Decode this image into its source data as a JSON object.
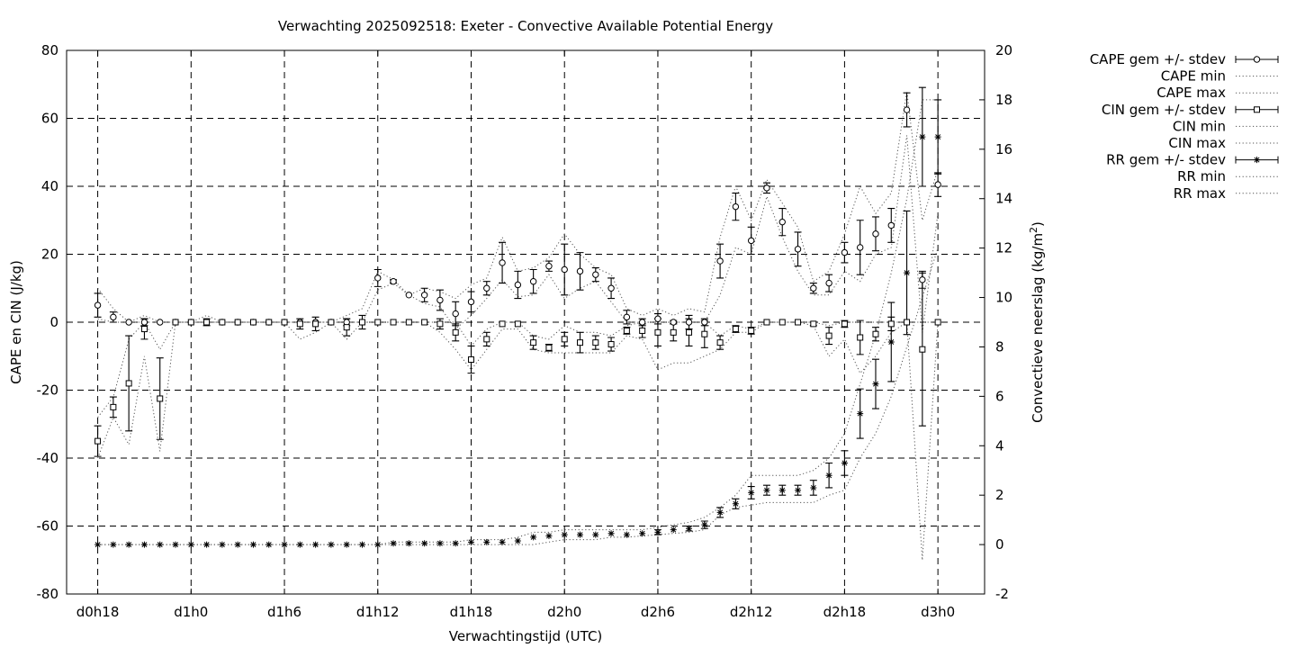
{
  "chart_data": {
    "type": "line",
    "title": "Verwachting 2025092518: Exeter - Convective Available Potential Energy",
    "xlabel": "Verwachtingstijd (UTC)",
    "ylabel": "CAPE en CIN (J/kg)",
    "y2label_main": "Convectieve neerslag (kg/m",
    "y2label_sup": "2",
    "y2label_end": ")",
    "ylim": [
      -80,
      80
    ],
    "y2lim": [
      -2,
      20
    ],
    "xlim_hours": [
      -2,
      57
    ],
    "grid": true,
    "legend_position": "right",
    "x_ticks": [
      {
        "h": 0,
        "label": "d0h18"
      },
      {
        "h": 6,
        "label": "d1h0"
      },
      {
        "h": 12,
        "label": "d1h6"
      },
      {
        "h": 18,
        "label": "d1h12"
      },
      {
        "h": 24,
        "label": "d1h18"
      },
      {
        "h": 30,
        "label": "d2h0"
      },
      {
        "h": 36,
        "label": "d2h6"
      },
      {
        "h": 42,
        "label": "d2h12"
      },
      {
        "h": 48,
        "label": "d2h18"
      },
      {
        "h": 54,
        "label": "d3h0"
      }
    ],
    "y_ticks": [
      80,
      60,
      40,
      20,
      0,
      -20,
      -40,
      -60,
      -80
    ],
    "y2_ticks": [
      20,
      18,
      16,
      14,
      12,
      10,
      8,
      6,
      4,
      2,
      0,
      -2
    ],
    "legend": [
      {
        "key": "cape_mean",
        "label": "CAPE gem +/- stdev"
      },
      {
        "key": "cape_min",
        "label": "CAPE min"
      },
      {
        "key": "cape_max",
        "label": "CAPE max"
      },
      {
        "key": "cin_mean",
        "label": "CIN gem +/- stdev"
      },
      {
        "key": "cin_min",
        "label": "CIN min"
      },
      {
        "key": "cin_max",
        "label": "CIN max"
      },
      {
        "key": "rr_mean",
        "label": "RR gem +/- stdev"
      },
      {
        "key": "rr_min",
        "label": "RR min"
      },
      {
        "key": "rr_max",
        "label": "RR max"
      }
    ],
    "hours": [
      0,
      1,
      2,
      3,
      4,
      5,
      6,
      7,
      8,
      9,
      10,
      11,
      12,
      13,
      14,
      15,
      16,
      17,
      18,
      19,
      20,
      21,
      22,
      23,
      24,
      25,
      26,
      27,
      28,
      29,
      30,
      31,
      32,
      33,
      34,
      35,
      36,
      37,
      38,
      39,
      40,
      41,
      42,
      43,
      44,
      45,
      46,
      47,
      48,
      49,
      50,
      51,
      52,
      53,
      54
    ],
    "series": [
      {
        "name": "CAPE gem +/- stdev",
        "axis": "y1",
        "marker": "circle",
        "mean": [
          5,
          1.5,
          0,
          0,
          0,
          0,
          0,
          0,
          0,
          0,
          0,
          0,
          0,
          0,
          0,
          0,
          0,
          0,
          13,
          12,
          8,
          8,
          6.5,
          2.5,
          6,
          10,
          17.5,
          11,
          12,
          16.5,
          15.5,
          15,
          14,
          10,
          1.5,
          0,
          1,
          0,
          0,
          0,
          18,
          34,
          24,
          39.5,
          29.5,
          21.5,
          10,
          11.5,
          20.5,
          22,
          26,
          28.5,
          62.5,
          12.5,
          40.5
        ],
        "stdev": [
          3.5,
          1.5,
          0,
          1,
          0,
          0,
          0,
          1,
          0,
          0,
          0,
          0,
          0,
          0,
          0,
          0,
          1,
          2,
          2.5,
          0.5,
          0,
          2,
          3,
          3.5,
          3,
          2,
          6,
          4,
          3.5,
          1.5,
          7.5,
          5.5,
          2,
          3,
          2,
          1,
          1.5,
          0.5,
          2,
          1,
          5,
          4,
          4,
          1.5,
          4,
          5,
          1.5,
          2.5,
          3,
          8,
          5,
          5,
          5,
          2.5,
          3.5
        ],
        "min": [
          1,
          0,
          0,
          0,
          0,
          0,
          0,
          0,
          0,
          0,
          0,
          0,
          0,
          0,
          0,
          0,
          0,
          0,
          9.5,
          11.5,
          8,
          5.5,
          4.5,
          -2,
          2,
          7,
          12.5,
          7.5,
          8,
          14,
          7,
          10,
          12,
          6,
          0,
          0,
          0,
          0,
          0,
          0,
          8,
          22,
          20,
          37,
          25,
          15,
          8,
          8,
          15,
          12,
          20,
          22,
          55,
          -3,
          32
        ],
        "max": [
          10,
          4,
          0,
          2,
          0,
          0,
          0,
          2,
          0,
          0,
          0,
          0,
          0,
          0,
          0,
          0,
          2,
          4,
          15,
          12.5,
          8,
          10,
          9,
          7,
          11,
          13,
          25,
          15,
          16,
          19,
          26,
          20,
          16,
          14,
          4,
          2,
          4,
          2,
          4,
          3,
          25,
          40,
          30,
          42,
          35,
          28,
          12,
          15,
          26,
          40,
          32,
          38,
          68,
          30,
          45
        ]
      },
      {
        "name": "CIN gem +/- stdev",
        "axis": "y1",
        "marker": "square",
        "mean": [
          -35,
          -25,
          -18,
          -2,
          -22.5,
          0,
          0,
          0,
          0,
          0,
          0,
          0,
          0,
          -0.5,
          -0.5,
          0,
          -1.5,
          0,
          0,
          0,
          0,
          0,
          -0.5,
          -3,
          -11,
          -5,
          -0.5,
          -0.5,
          -6,
          -7.5,
          -5,
          -6,
          -6,
          -6.5,
          -2.5,
          -2.5,
          -3,
          -3,
          -3,
          -3.5,
          -6,
          -2,
          -2.5,
          0,
          0,
          0,
          -0.5,
          -4,
          -0.5,
          -4.5,
          -3.5,
          -0.5,
          0,
          -8,
          0
        ],
        "stdev": [
          4.5,
          3,
          14,
          3,
          12,
          0,
          0,
          0,
          0,
          0,
          0,
          0,
          0,
          1.5,
          2,
          0,
          2.5,
          0,
          0,
          0,
          0,
          0,
          1.5,
          2.5,
          4,
          2,
          0,
          0,
          2,
          1,
          2,
          3,
          2,
          2,
          1,
          2,
          4,
          2.5,
          4,
          4,
          2,
          1,
          1,
          0,
          0,
          0,
          0.5,
          2.5,
          1,
          5,
          2,
          2,
          0,
          22.5,
          0
        ],
        "min": [
          -40,
          -28,
          -36,
          -10,
          -38,
          0,
          0,
          0,
          0,
          0,
          0,
          0,
          0,
          -5,
          -3,
          0,
          -5,
          0,
          0,
          0,
          0,
          0,
          -3,
          -8,
          -14,
          -8,
          -2,
          -2,
          -8,
          -9,
          -9,
          -9,
          -9,
          -9,
          -4,
          -5,
          -14,
          -12,
          -12,
          -10,
          -8,
          -3,
          -3,
          0,
          0,
          0,
          -1,
          -10,
          -5,
          -15,
          -10,
          -3,
          0,
          -70,
          0
        ],
        "max": [
          -28,
          -22,
          -5,
          0,
          -8,
          0,
          0,
          0,
          0,
          0,
          0,
          0,
          0,
          0,
          0,
          0,
          0,
          0,
          0,
          0,
          0,
          0,
          0,
          0,
          -7,
          -2,
          0,
          0,
          -4,
          -5,
          -1,
          -3,
          -3,
          -4,
          -1,
          0,
          0,
          0,
          0,
          0,
          -4,
          -1,
          -2,
          0,
          0,
          0,
          0,
          -1,
          0,
          0,
          0,
          0,
          0,
          0,
          0
        ]
      },
      {
        "name": "RR gem +/- stdev",
        "axis": "y2",
        "marker": "star",
        "mean": [
          0,
          0,
          0,
          0,
          0,
          0,
          0,
          0,
          0,
          0,
          0,
          0,
          0,
          0,
          0,
          0,
          0,
          0,
          0,
          0.05,
          0.05,
          0.05,
          0.05,
          0.05,
          0.1,
          0.1,
          0.1,
          0.15,
          0.3,
          0.35,
          0.4,
          0.4,
          0.4,
          0.45,
          0.4,
          0.45,
          0.5,
          0.6,
          0.65,
          0.8,
          1.3,
          1.65,
          2.1,
          2.2,
          2.2,
          2.2,
          2.3,
          2.8,
          3.3,
          5.3,
          6.5,
          8.2,
          11,
          16.5,
          16.5
        ],
        "stdev": [
          0,
          0,
          0,
          0,
          0,
          0,
          0,
          0,
          0,
          0,
          0,
          0,
          0,
          0,
          0,
          0,
          0,
          0,
          0,
          0,
          0,
          0,
          0,
          0,
          0,
          0,
          0,
          0,
          0,
          0,
          0,
          0,
          0,
          0,
          0,
          0,
          0.1,
          0,
          0.1,
          0.15,
          0.2,
          0.2,
          0.25,
          0.2,
          0.2,
          0.2,
          0.3,
          0.5,
          0.5,
          1,
          1,
          1.6,
          2.5,
          2,
          1.5
        ],
        "min": [
          0,
          0,
          0,
          0,
          0,
          0,
          0,
          0,
          0,
          0,
          0,
          0,
          0,
          0,
          0,
          0,
          0,
          0,
          0,
          0,
          0,
          0,
          0,
          0,
          0,
          0,
          0,
          0,
          0,
          0.1,
          0.2,
          0.2,
          0.2,
          0.3,
          0.3,
          0.35,
          0.4,
          0.45,
          0.5,
          0.6,
          1.2,
          1.5,
          1.6,
          1.7,
          1.7,
          1.7,
          1.7,
          2,
          2.2,
          3.5,
          4.5,
          6,
          8,
          10,
          12
        ],
        "max": [
          0,
          0,
          0,
          0,
          0,
          0,
          0,
          0,
          0,
          0,
          0,
          0,
          0,
          0,
          0,
          0,
          0,
          0,
          0,
          0.1,
          0.1,
          0.1,
          0.1,
          0.1,
          0.2,
          0.2,
          0.2,
          0.3,
          0.5,
          0.5,
          0.6,
          0.6,
          0.6,
          0.6,
          0.6,
          0.6,
          0.7,
          0.8,
          0.9,
          1.1,
          1.5,
          2,
          2.8,
          2.8,
          2.8,
          2.8,
          3,
          3.5,
          4.5,
          6.5,
          8.5,
          11,
          14,
          18,
          18
        ]
      }
    ]
  }
}
